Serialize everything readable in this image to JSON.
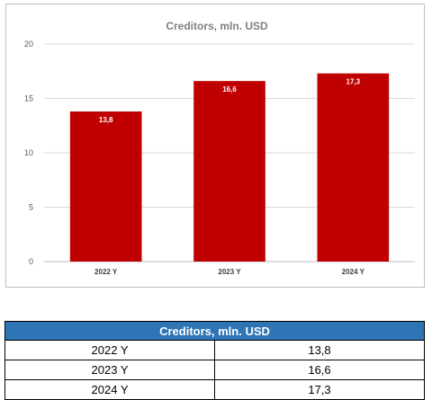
{
  "chart_data": {
    "type": "bar",
    "title": "Creditors, mln. USD",
    "categories": [
      "2022 Y",
      "2023 Y",
      "2024 Y"
    ],
    "values": [
      13.8,
      16.6,
      17.3
    ],
    "value_labels": [
      "13,8",
      "16,6",
      "17,3"
    ],
    "ylim": [
      0,
      20
    ],
    "yticks": [
      0,
      5,
      10,
      15,
      20
    ],
    "grid": true,
    "legend": "none",
    "bar_color": "#c00000"
  },
  "table": {
    "header": "Creditors, mln. USD",
    "rows": [
      {
        "year": "2022 Y",
        "value": "13,8"
      },
      {
        "year": "2023 Y",
        "value": "16,6"
      },
      {
        "year": "2024 Y",
        "value": "17,3"
      }
    ],
    "header_color": "#2e75b6"
  }
}
